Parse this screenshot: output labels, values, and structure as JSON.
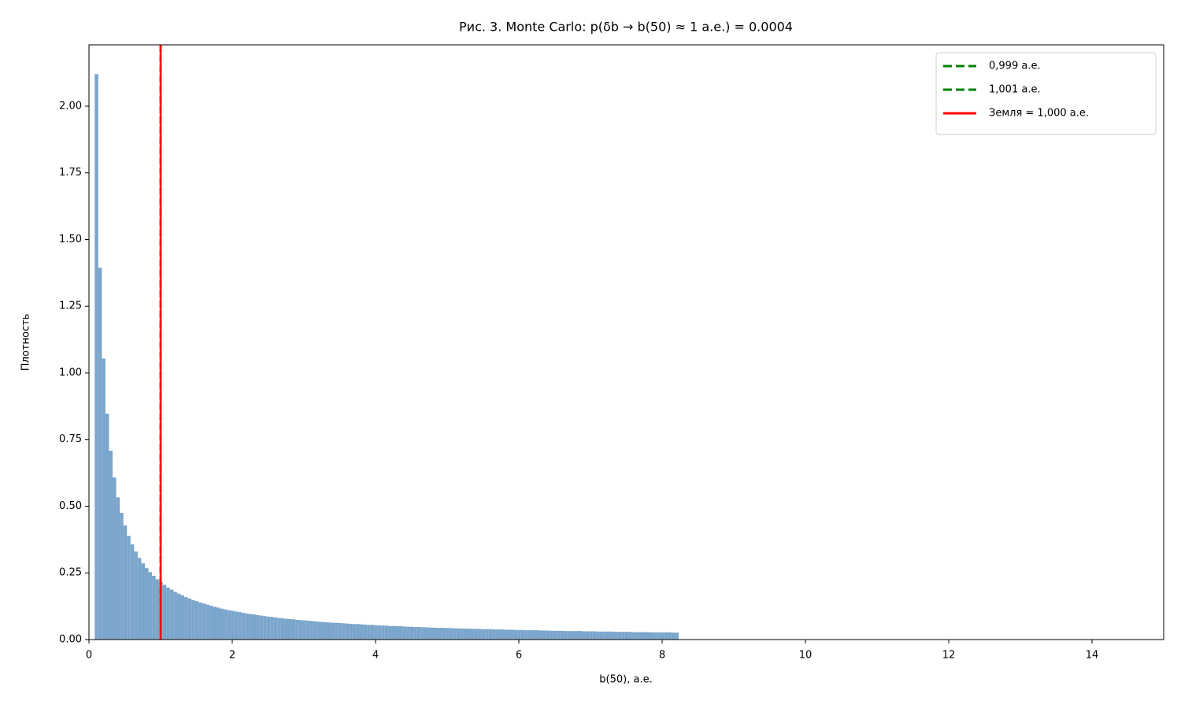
{
  "chart_data": {
    "type": "histogram",
    "title": "Рис. 3. Monte Carlo: p(δb → b(50) ≈ 1 а.е.) = 0.0004",
    "xlabel": "b(50), а.е.",
    "ylabel": "Плотность",
    "color": "#7ba6cb",
    "bins": [
      0.08,
      0.13,
      0.18,
      0.23,
      0.28,
      0.33,
      0.38,
      0.43,
      0.48,
      0.53,
      0.58,
      0.63,
      0.68,
      0.73,
      0.78,
      0.83,
      0.88,
      0.93,
      0.98,
      1.03,
      1.08,
      1.13,
      1.18,
      1.23,
      1.28,
      1.33,
      1.38,
      1.43,
      1.48,
      1.53,
      1.58,
      1.63,
      1.68,
      1.73,
      1.78,
      1.83,
      1.88,
      1.93,
      1.98,
      2.03,
      2.08,
      2.13,
      2.18,
      2.23,
      2.28,
      2.33,
      2.38,
      2.43,
      2.48,
      2.53,
      2.58,
      2.63,
      2.68,
      2.73,
      2.78,
      2.83,
      2.88,
      2.93,
      2.98,
      3.03,
      3.08,
      3.13,
      3.18,
      3.23,
      3.28,
      3.33,
      3.38,
      3.43,
      3.48,
      3.53,
      3.58,
      3.63,
      3.68,
      3.73,
      3.78,
      3.83,
      3.88,
      3.93,
      3.98,
      4.03,
      4.08,
      4.13,
      4.18,
      4.23,
      4.28,
      4.33,
      4.38,
      4.43,
      4.48,
      4.53,
      4.58,
      4.63,
      4.68,
      4.73,
      4.78,
      4.83,
      4.88,
      4.93,
      4.98,
      5.03,
      5.08,
      5.13,
      5.18,
      5.23,
      5.28,
      5.33,
      5.38,
      5.43,
      5.48,
      5.53,
      5.58,
      5.63,
      5.68,
      5.73,
      5.78,
      5.83,
      5.88,
      5.93,
      5.98,
      6.03,
      6.08,
      6.13,
      6.18,
      6.23,
      6.28,
      6.33,
      6.38,
      6.43,
      6.48,
      6.53,
      6.58,
      6.63,
      6.68,
      6.73,
      6.78,
      6.83,
      6.88,
      6.93,
      6.98,
      7.03,
      7.08,
      7.13,
      7.18,
      7.23,
      7.28,
      7.33,
      7.38,
      7.43,
      7.48,
      7.53,
      7.58,
      7.63,
      7.68,
      7.73,
      7.78,
      7.83,
      7.88,
      7.93,
      7.98,
      8.03,
      8.08,
      8.13,
      8.18,
      8.23
    ],
    "values": [
      2.12,
      1.394,
      1.054,
      0.847,
      0.708,
      0.608,
      0.533,
      0.475,
      0.428,
      0.389,
      0.357,
      0.33,
      0.306,
      0.286,
      0.268,
      0.253,
      0.239,
      0.226,
      0.215,
      0.205,
      0.195,
      0.187,
      0.179,
      0.172,
      0.166,
      0.159,
      0.154,
      0.148,
      0.144,
      0.139,
      0.135,
      0.131,
      0.127,
      0.123,
      0.12,
      0.116,
      0.113,
      0.11,
      0.108,
      0.105,
      0.103,
      0.1,
      0.098,
      0.096,
      0.094,
      0.092,
      0.09,
      0.088,
      0.086,
      0.085,
      0.083,
      0.081,
      0.08,
      0.078,
      0.077,
      0.076,
      0.074,
      0.073,
      0.072,
      0.071,
      0.07,
      0.068,
      0.067,
      0.066,
      0.065,
      0.064,
      0.063,
      0.063,
      0.062,
      0.061,
      0.06,
      0.059,
      0.058,
      0.058,
      0.057,
      0.056,
      0.055,
      0.055,
      0.054,
      0.053,
      0.053,
      0.052,
      0.051,
      0.051,
      0.05,
      0.05,
      0.049,
      0.048,
      0.048,
      0.047,
      0.047,
      0.046,
      0.046,
      0.045,
      0.045,
      0.044,
      0.044,
      0.044,
      0.043,
      0.043,
      0.042,
      0.042,
      0.041,
      0.041,
      0.041,
      0.04,
      0.04,
      0.04,
      0.039,
      0.039,
      0.039,
      0.038,
      0.038,
      0.038,
      0.037,
      0.037,
      0.037,
      0.036,
      0.036,
      0.036,
      0.035,
      0.035,
      0.035,
      0.035,
      0.034,
      0.034,
      0.034,
      0.033,
      0.033,
      0.033,
      0.033,
      0.032,
      0.032,
      0.032,
      0.032,
      0.032,
      0.031,
      0.031,
      0.031,
      0.031,
      0.03,
      0.03,
      0.03,
      0.03,
      0.03,
      0.029,
      0.029,
      0.029,
      0.029,
      0.029,
      0.028,
      0.028,
      0.028,
      0.028,
      0.028,
      0.027,
      0.027,
      0.027,
      0.027,
      0.027,
      0.027,
      0.026,
      0.026
    ],
    "vlines": [
      {
        "name": "0,999 а.е.",
        "x": 0.999,
        "color": "#008000",
        "style": "dashed"
      },
      {
        "name": "1,001 а.е.",
        "x": 1.001,
        "color": "#008000",
        "style": "dashed"
      },
      {
        "name": "Земля = 1,000 а.е.",
        "x": 1.0,
        "color": "#ff0000",
        "style": "solid"
      }
    ],
    "legend": "upper right",
    "xlim": [
      0,
      15
    ],
    "xticks": [
      0,
      2,
      4,
      6,
      8,
      10,
      12,
      14
    ],
    "ylim": [
      0,
      2.23
    ],
    "yticks": [
      {
        "value": 0,
        "label": "0.00"
      },
      {
        "value": 0.25,
        "label": "0.25"
      },
      {
        "value": 0.5,
        "label": "0.50"
      },
      {
        "value": 0.75,
        "label": "0.75"
      },
      {
        "value": 1,
        "label": "1.00"
      },
      {
        "value": 1.25,
        "label": "1.25"
      },
      {
        "value": 1.5,
        "label": "1.50"
      },
      {
        "value": 1.75,
        "label": "1.75"
      },
      {
        "value": 2,
        "label": "2.00"
      }
    ]
  }
}
